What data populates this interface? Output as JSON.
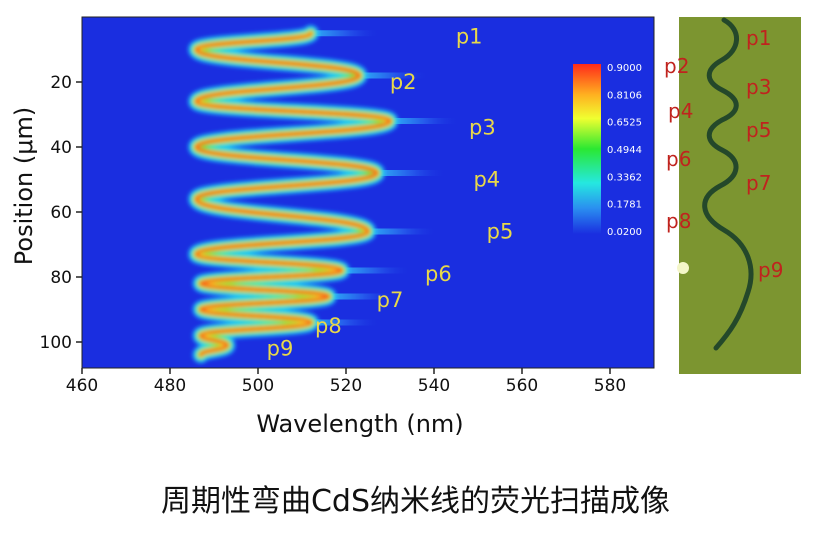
{
  "caption": "周期性弯曲CdS纳米线的荧光扫描成像",
  "chart_data": {
    "type": "heatmap",
    "xlabel": "Wavelength (nm)",
    "ylabel": "Position (μm)",
    "xlim": [
      460,
      590
    ],
    "ylim": [
      0,
      108
    ],
    "x_ticks": [
      460,
      480,
      500,
      520,
      540,
      560,
      580
    ],
    "y_ticks": [
      20,
      40,
      60,
      80,
      100
    ],
    "background_color": "#1a2ee0",
    "colorbar": {
      "labels": [
        "0.9000",
        "0.8106",
        "0.6525",
        "0.4944",
        "0.3362",
        "0.1781",
        "0.0200"
      ],
      "values": [
        0.9,
        0.8106,
        0.6525,
        0.4944,
        0.3362,
        0.1781,
        0.02
      ]
    },
    "ridge_path": [
      [
        5,
        512
      ],
      [
        10,
        486
      ],
      [
        18,
        523
      ],
      [
        26,
        486
      ],
      [
        32,
        530
      ],
      [
        40,
        486
      ],
      [
        48,
        527
      ],
      [
        56,
        486
      ],
      [
        66,
        525
      ],
      [
        73,
        486
      ],
      [
        78,
        519
      ],
      [
        82,
        487
      ],
      [
        86,
        516
      ],
      [
        90,
        487
      ],
      [
        94,
        512
      ],
      [
        98,
        487
      ],
      [
        101,
        493
      ],
      [
        104,
        487
      ]
    ],
    "peaks": [
      {
        "label": "p1",
        "wavelength": 548,
        "position": 6
      },
      {
        "label": "p2",
        "wavelength": 533,
        "position": 20
      },
      {
        "label": "p3",
        "wavelength": 551,
        "position": 34
      },
      {
        "label": "p4",
        "wavelength": 552,
        "position": 50
      },
      {
        "label": "p5",
        "wavelength": 555,
        "position": 66
      },
      {
        "label": "p6",
        "wavelength": 541,
        "position": 79
      },
      {
        "label": "p7",
        "wavelength": 530,
        "position": 87
      },
      {
        "label": "p8",
        "wavelength": 516,
        "position": 95
      },
      {
        "label": "p9",
        "wavelength": 505,
        "position": 102
      }
    ]
  },
  "photo": {
    "background_color": "#7c9530",
    "wire_color": "#24482a",
    "labels": [
      "p1",
      "p2",
      "p3",
      "p4",
      "p5",
      "p6",
      "p7",
      "p8",
      "p9"
    ]
  }
}
